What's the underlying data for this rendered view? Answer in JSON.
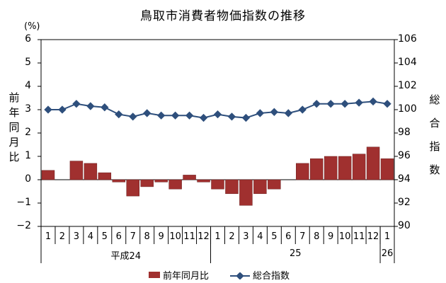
{
  "chart_data": {
    "type": "bar+line",
    "title": "鳥取市消費者物価指数の推移",
    "unit_left": "(%)",
    "ylabel_left": "前年同月比",
    "ylabel_right": "総合指数",
    "categories": [
      "1",
      "2",
      "3",
      "4",
      "5",
      "6",
      "7",
      "8",
      "9",
      "10",
      "11",
      "12",
      "1",
      "2",
      "3",
      "4",
      "5",
      "6",
      "7",
      "8",
      "9",
      "10",
      "11",
      "12",
      "1"
    ],
    "eras": [
      {
        "label": "平成24",
        "start": 0,
        "end": 11
      },
      {
        "label": "25",
        "start": 12,
        "end": 23
      },
      {
        "label": "26",
        "start": 24,
        "end": 24
      }
    ],
    "ylim_left": [
      -2,
      6
    ],
    "yticks_left": [
      "6",
      "5",
      "4",
      "3",
      "2",
      "1",
      "0",
      "−1",
      "−2"
    ],
    "ylim_right": [
      90,
      106
    ],
    "yticks_right": [
      "106",
      "104",
      "102",
      "100",
      "98",
      "96",
      "94",
      "92",
      "90"
    ],
    "series": [
      {
        "name": "前年同月比",
        "type": "bar",
        "axis": "left",
        "color": "#a0302f",
        "values": [
          0.4,
          0.0,
          0.8,
          0.7,
          0.3,
          -0.1,
          -0.7,
          -0.3,
          -0.1,
          -0.4,
          0.2,
          -0.1,
          -0.4,
          -0.6,
          -1.1,
          -0.6,
          -0.4,
          0.0,
          0.7,
          0.9,
          1.0,
          1.0,
          1.1,
          1.4,
          0.9
        ]
      },
      {
        "name": "総合指数",
        "type": "line",
        "axis": "right",
        "color": "#2e4f7c",
        "values": [
          100.0,
          100.0,
          100.5,
          100.3,
          100.2,
          99.6,
          99.4,
          99.7,
          99.5,
          99.5,
          99.5,
          99.3,
          99.6,
          99.4,
          99.3,
          99.7,
          99.8,
          99.7,
          100.0,
          100.5,
          100.5,
          100.5,
          100.6,
          100.7,
          100.5
        ]
      }
    ],
    "grid": false,
    "legend_position": "bottom"
  }
}
